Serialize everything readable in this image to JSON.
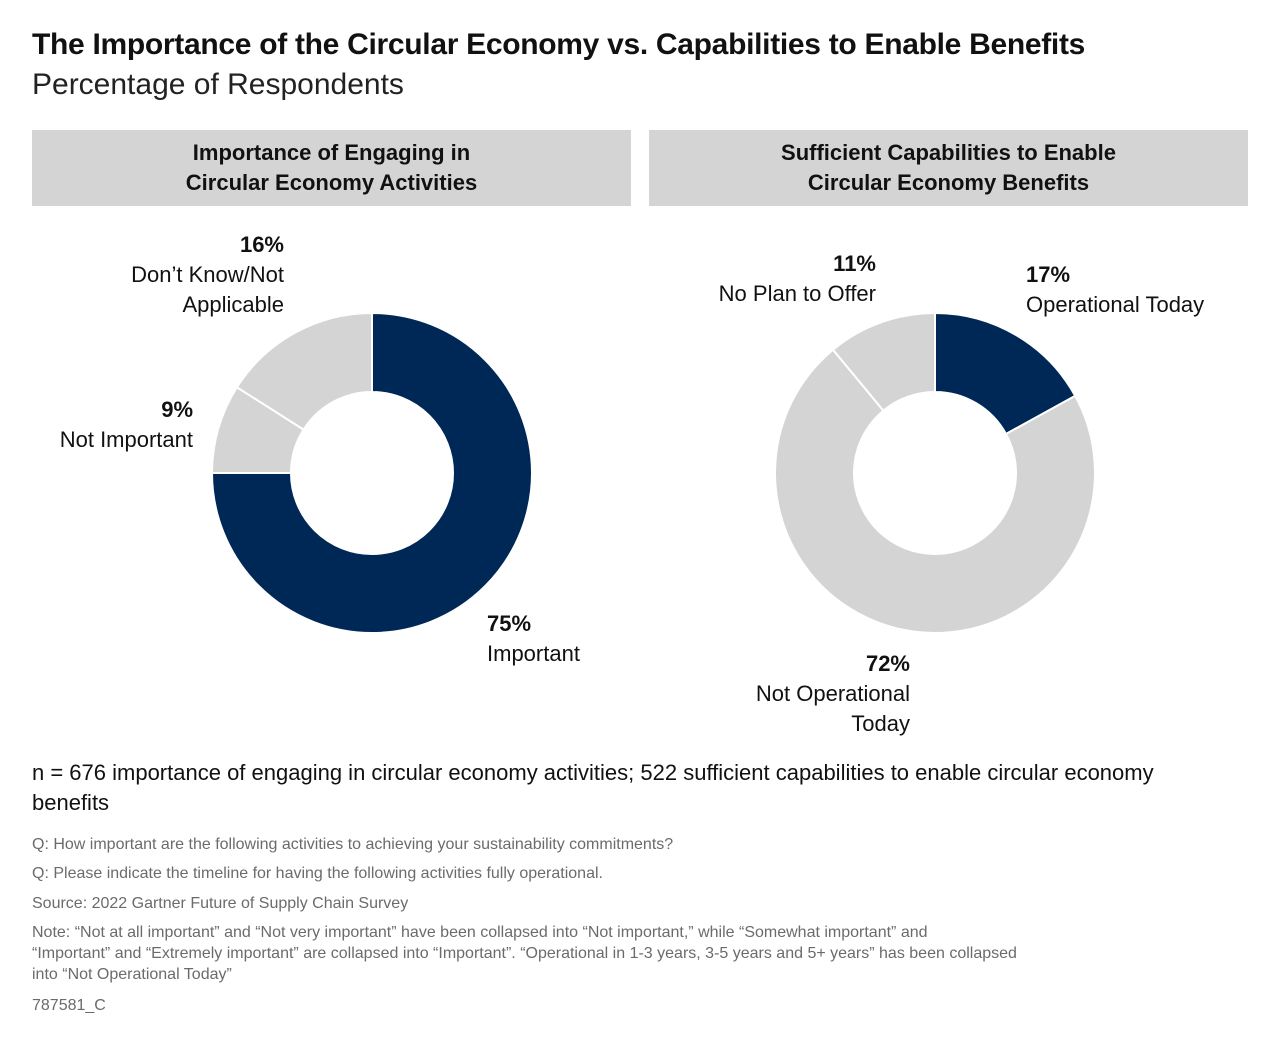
{
  "title": "The Importance of the Circular Economy vs. Capabilities to Enable Benefits",
  "subtitle": "Percentage of Respondents",
  "colors": {
    "navy": "#002856",
    "light_gray": "#d4d4d4",
    "header_bg": "#d4d4d4"
  },
  "chart_data": [
    {
      "type": "pie",
      "title_lines": [
        "Importance of Engaging in",
        "Circular Economy Activities"
      ],
      "slices": [
        {
          "label": "Important",
          "value": 75,
          "display": "75%",
          "color": "#002856"
        },
        {
          "label": "Not Important",
          "value": 9,
          "display": "9%",
          "color": "#d4d4d4"
        },
        {
          "label_lines": [
            "Don’t Know/Not",
            "Applicable"
          ],
          "value": 16,
          "display": "16%",
          "color": "#d4d4d4"
        }
      ]
    },
    {
      "type": "pie",
      "title_lines": [
        "Sufficient Capabilities to Enable",
        "Circular Economy Benefits"
      ],
      "slices": [
        {
          "label": "Operational Today",
          "value": 17,
          "display": "17%",
          "color": "#002856"
        },
        {
          "label_lines": [
            "Not Operational",
            "Today"
          ],
          "value": 72,
          "display": "72%",
          "color": "#d4d4d4"
        },
        {
          "label": "No Plan to Offer",
          "value": 11,
          "display": "11%",
          "color": "#d4d4d4"
        }
      ]
    }
  ],
  "sample_note": "n = 676 importance of engaging in circular economy activities; 522 sufficient capabilities to enable circular economy benefits",
  "notes": {
    "q1": "Q: How important are the following activities to achieving your sustainability commitments?",
    "q2": "Q: Please indicate the timeline for having the following activities fully operational.",
    "source": "Source:  2022 Gartner Future of Supply Chain Survey",
    "note_line1": "Note: “Not at all important” and “Not very important” have been collapsed into “Not important,” while “Somewhat important” and",
    "note_line2": "“Important” and “Extremely important” are collapsed into “Important”. “Operational in 1-3 years, 3-5 years and 5+ years” has been collapsed",
    "note_line3": "into “Not Operational Today”",
    "id": "787581_C"
  }
}
